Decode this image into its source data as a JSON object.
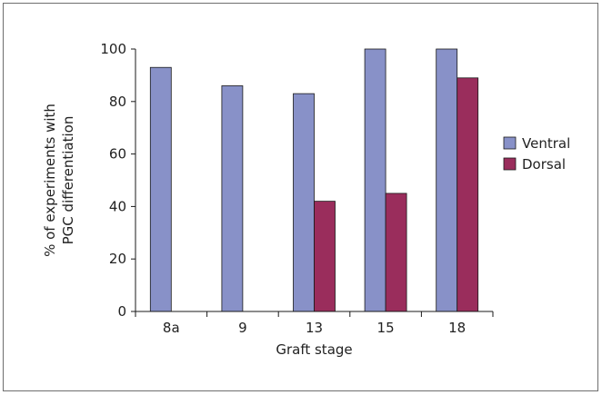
{
  "chart_data": {
    "type": "bar",
    "title": "",
    "xlabel": "Graft stage",
    "ylabel_lines": [
      "% of experiments with",
      "PGC differentiation"
    ],
    "categories": [
      "8a",
      "9",
      "13",
      "15",
      "18"
    ],
    "series": [
      {
        "name": "Ventral",
        "color": "#8891c8",
        "values": [
          93,
          86,
          83,
          100,
          100
        ]
      },
      {
        "name": "Dorsal",
        "color": "#9a2d5c",
        "values": [
          null,
          null,
          42,
          45,
          89
        ]
      }
    ],
    "ylim": [
      0,
      100
    ],
    "yticks": [
      0,
      20,
      40,
      60,
      80,
      100
    ],
    "grid": false,
    "legend": "right"
  }
}
